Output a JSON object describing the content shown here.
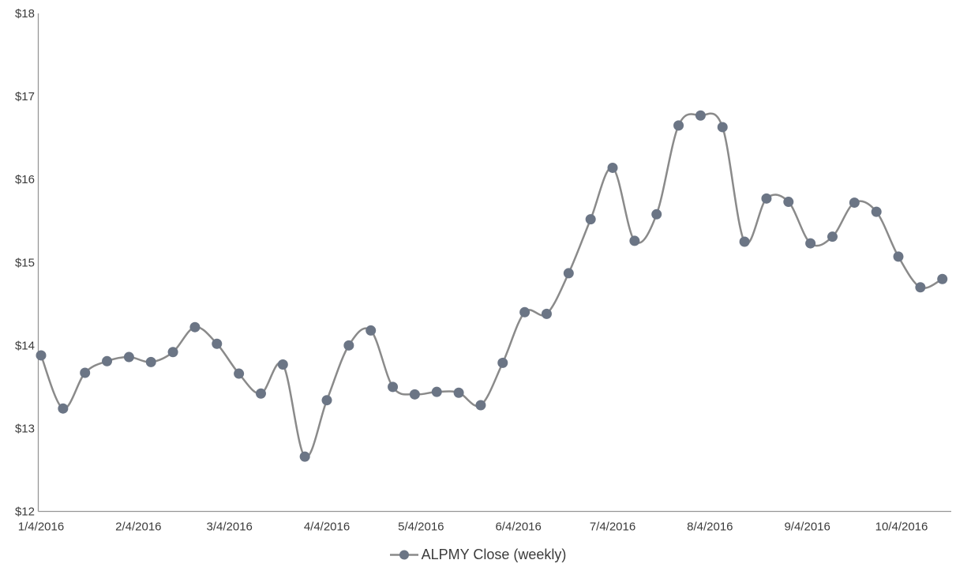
{
  "chart_data": {
    "type": "line",
    "smoothed": true,
    "marker": "circle",
    "grid": false,
    "legend_position": "bottom",
    "ylim": [
      12,
      18
    ],
    "x_axis_start": "1/4/2016",
    "x_axis_end": "10/23/2016",
    "y_tick_labels": [
      "$12",
      "$13",
      "$14",
      "$15",
      "$16",
      "$17",
      "$18"
    ],
    "x_tick_labels": [
      "1/4/2016",
      "2/4/2016",
      "3/4/2016",
      "4/4/2016",
      "5/4/2016",
      "6/4/2016",
      "7/4/2016",
      "8/4/2016",
      "9/4/2016",
      "10/4/2016"
    ],
    "series": [
      {
        "name": "ALPMY Close (weekly)",
        "x": [
          "1/4/2016",
          "1/11/2016",
          "1/18/2016",
          "1/25/2016",
          "2/1/2016",
          "2/8/2016",
          "2/15/2016",
          "2/22/2016",
          "2/29/2016",
          "3/7/2016",
          "3/14/2016",
          "3/21/2016",
          "3/28/2016",
          "4/4/2016",
          "4/11/2016",
          "4/18/2016",
          "4/25/2016",
          "5/2/2016",
          "5/9/2016",
          "5/16/2016",
          "5/23/2016",
          "5/30/2016",
          "6/6/2016",
          "6/13/2016",
          "6/20/2016",
          "6/27/2016",
          "7/4/2016",
          "7/11/2016",
          "7/18/2016",
          "7/25/2016",
          "8/1/2016",
          "8/8/2016",
          "8/15/2016",
          "8/22/2016",
          "8/29/2016",
          "9/5/2016",
          "9/12/2016",
          "9/19/2016",
          "9/26/2016",
          "10/3/2016",
          "10/10/2016",
          "10/17/2016"
        ],
        "values": [
          13.88,
          13.24,
          13.67,
          13.81,
          13.86,
          13.8,
          13.92,
          14.22,
          14.02,
          13.66,
          13.42,
          13.77,
          12.66,
          13.34,
          14.0,
          14.18,
          13.5,
          13.41,
          13.44,
          13.43,
          13.28,
          13.79,
          14.4,
          14.38,
          14.87,
          15.52,
          16.14,
          15.26,
          15.58,
          16.65,
          16.77,
          16.63,
          15.25,
          15.77,
          15.73,
          15.23,
          15.31,
          15.72,
          15.61,
          15.07,
          14.7,
          14.8
        ]
      }
    ],
    "colors": {
      "line": "#8a8a8a",
      "marker": "#6b7585",
      "axis": "#969696",
      "text": "#3b3b3b"
    }
  },
  "legend": {
    "label": "ALPMY Close (weekly)"
  }
}
